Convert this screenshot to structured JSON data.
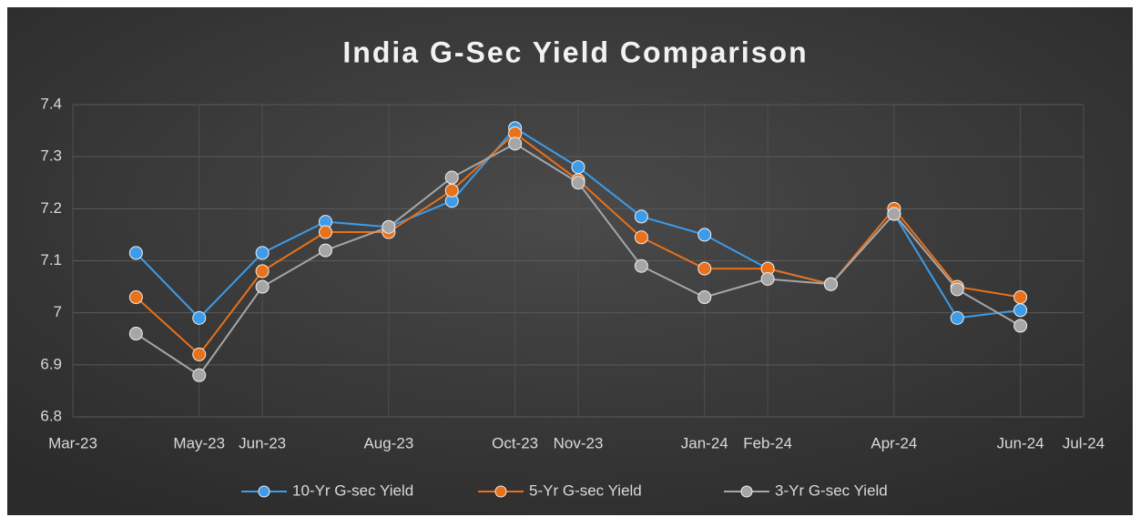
{
  "chart_data": {
    "type": "line",
    "title": "India G-Sec Yield Comparison",
    "x": [
      "2023-04",
      "2023-05",
      "2023-06",
      "2023-07",
      "2023-08",
      "2023-09",
      "2023-10",
      "2023-11",
      "2023-12",
      "2024-01",
      "2024-02",
      "2024-03",
      "2024-04",
      "2024-05",
      "2024-06"
    ],
    "series": [
      {
        "name": "10-Yr G-sec Yield",
        "color": "#3d9be9",
        "values": [
          7.115,
          6.99,
          7.115,
          7.175,
          7.165,
          7.215,
          7.355,
          7.28,
          7.185,
          7.15,
          7.085,
          7.055,
          7.19,
          6.99,
          7.005
        ]
      },
      {
        "name": "5-Yr G-sec Yield",
        "color": "#e8711a",
        "values": [
          7.03,
          6.92,
          7.08,
          7.155,
          7.155,
          7.235,
          7.345,
          7.255,
          7.145,
          7.085,
          7.085,
          7.055,
          7.2,
          7.05,
          7.03
        ]
      },
      {
        "name": "3-Yr G-sec Yield",
        "color": "#a6a6a6",
        "values": [
          6.96,
          6.88,
          7.05,
          7.12,
          7.165,
          7.26,
          7.325,
          7.25,
          7.09,
          7.03,
          7.065,
          7.055,
          7.19,
          7.045,
          6.975
        ]
      }
    ],
    "xlim": [
      "2023-03",
      "2024-07"
    ],
    "xticks": [
      {
        "value": "2023-03",
        "label": "Mar-23"
      },
      {
        "value": "2023-05",
        "label": "May-23"
      },
      {
        "value": "2023-06",
        "label": "Jun-23"
      },
      {
        "value": "2023-08",
        "label": "Aug-23"
      },
      {
        "value": "2023-10",
        "label": "Oct-23"
      },
      {
        "value": "2023-11",
        "label": "Nov-23"
      },
      {
        "value": "2024-01",
        "label": "Jan-24"
      },
      {
        "value": "2024-02",
        "label": "Feb-24"
      },
      {
        "value": "2024-04",
        "label": "Apr-24"
      },
      {
        "value": "2024-06",
        "label": "Jun-24"
      },
      {
        "value": "2024-07",
        "label": "Jul-24"
      }
    ],
    "ylim": [
      6.8,
      7.4
    ],
    "yticks": [
      6.8,
      6.9,
      7,
      7.1,
      7.2,
      7.3,
      7.4
    ],
    "grid": true,
    "legend": "bottom"
  }
}
